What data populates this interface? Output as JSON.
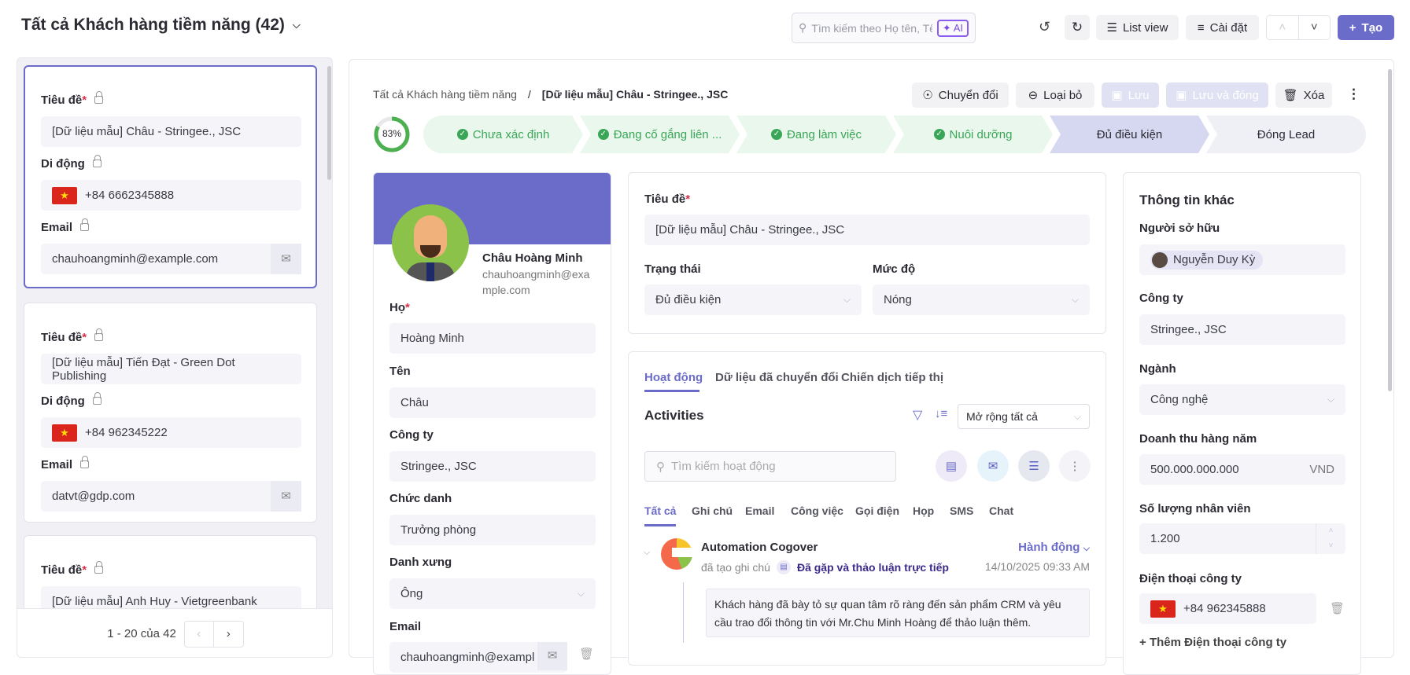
{
  "header": {
    "title": "Tất cả Khách hàng tiềm năng (42)",
    "search_placeholder": "Tìm kiếm theo Họ tên, Tên họ...",
    "ai_label": "AI",
    "list_view": "List view",
    "settings": "Cài đặt",
    "create": "Tạo"
  },
  "leads": [
    {
      "title_label": "Tiêu đề",
      "title": "[Dữ liệu mẫu] Châu - Stringee., JSC",
      "mobile_label": "Di động",
      "mobile": "+84 6662345888",
      "email_label": "Email",
      "email": "chauhoangminh@example.com"
    },
    {
      "title_label": "Tiêu đề",
      "title": "[Dữ liệu mẫu] Tiến Đạt - Green Dot Publishing",
      "mobile_label": "Di động",
      "mobile": "+84 962345222",
      "email_label": "Email",
      "email": "datvt@gdp.com"
    },
    {
      "title_label": "Tiêu đề",
      "title": "[Dữ liệu mẫu] Anh Huy - Vietgreenbank"
    }
  ],
  "pagination": {
    "text": "1 - 20 của 42"
  },
  "detail": {
    "breadcrumb": {
      "parent": "Tất cả Khách hàng tiềm năng",
      "separator": "/",
      "current": "[Dữ liệu mẫu] Châu - Stringee., JSC"
    },
    "actions": {
      "convert": "Chuyển đổi",
      "discard": "Loại bỏ",
      "save": "Lưu",
      "save_close": "Lưu và đóng",
      "delete": "Xóa"
    },
    "progress": {
      "value": 83,
      "label": "83%"
    },
    "stages": [
      {
        "label": "Chưa xác định",
        "state": "done"
      },
      {
        "label": "Đang cố gắng liên ...",
        "state": "done"
      },
      {
        "label": "Đang làm việc",
        "state": "done"
      },
      {
        "label": "Nuôi dưỡng",
        "state": "done"
      },
      {
        "label": "Đủ điều kiện",
        "state": "current"
      },
      {
        "label": "Đóng Lead",
        "state": "todo"
      }
    ],
    "profile": {
      "name": "Châu Hoàng Minh",
      "email_line1": "chauhoangminh@exa",
      "email_line2": "mple.com",
      "ho_label": "Họ",
      "ho": "Hoàng Minh",
      "ten_label": "Tên",
      "ten": "Châu",
      "company_label": "Công ty",
      "company": "Stringee., JSC",
      "position_label": "Chức danh",
      "position": "Trưởng phòng",
      "salutation_label": "Danh xưng",
      "salutation": "Ông",
      "email_label": "Email",
      "email": "chauhoangminh@exampl"
    },
    "main": {
      "title_label": "Tiêu đề",
      "title": "[Dữ liệu mẫu] Châu - Stringee., JSC",
      "status_label": "Trạng thái",
      "status": "Đủ điều kiện",
      "level_label": "Mức độ",
      "level": "Nóng"
    },
    "activity": {
      "tabs": [
        "Hoạt động",
        "Dữ liệu đã chuyển đổi",
        "Chiến dịch tiếp thị"
      ],
      "heading": "Activities",
      "expand": "Mở rộng tất cả",
      "search_placeholder": "Tìm kiếm hoạt động",
      "filters": [
        "Tất cả",
        "Ghi chú",
        "Email",
        "Công việc",
        "Gọi điện",
        "Họp",
        "SMS",
        "Chat"
      ],
      "item": {
        "author": "Automation Cogover",
        "verb": "đã tạo ghi chú",
        "subject": "Đã gặp và thảo luận trực tiếp",
        "action": "Hành động",
        "time": "14/10/2025 09:33 AM",
        "body": "Khách hàng đã bày tỏ sự quan tâm rõ ràng đến sản phẩm CRM và yêu cầu trao đổi thông tin với Mr.Chu Minh Hoàng để thảo luận thêm."
      }
    },
    "other": {
      "heading": "Thông tin khác",
      "owner_label": "Người sở hữu",
      "owner": "Nguyễn Duy Kỳ",
      "company_label": "Công ty",
      "company": "Stringee., JSC",
      "industry_label": "Ngành",
      "industry": "Công nghệ",
      "revenue_label": "Doanh thu hàng năm",
      "revenue": "500.000.000.000",
      "currency": "VND",
      "employees_label": "Số lượng nhân viên",
      "employees": "1.200",
      "phone_label": "Điện thoại công ty",
      "phone": "+84 962345888",
      "add_phone": "Thêm Điện thoại công ty"
    }
  },
  "colors": {
    "accent": "#6b6cc9",
    "done_bg": "#eaf7ec",
    "done_text": "#3aa657",
    "current_bg": "#d6d7f0",
    "todo_bg": "#eef0f5"
  }
}
